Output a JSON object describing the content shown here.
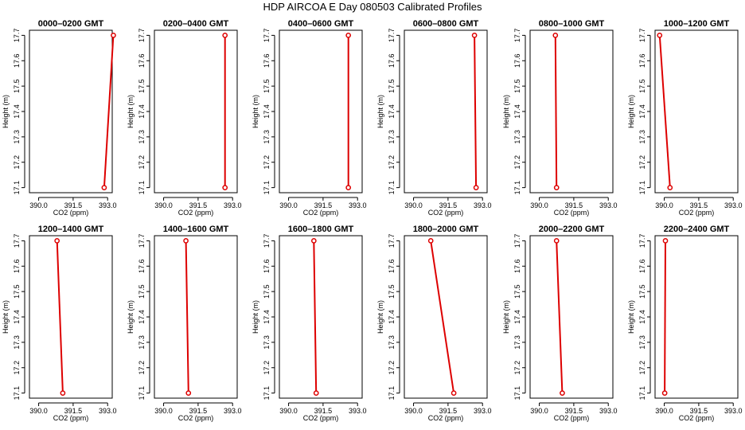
{
  "title": "HDP  AIRCOA E  Day 080503  Calibrated Profiles",
  "colors": {
    "series": "#dd0000",
    "axes": "#000000",
    "background": "#ffffff"
  },
  "chart_data": [
    {
      "type": "line",
      "title": "0000–0200 GMT",
      "xlabel": "CO2 (ppm)",
      "ylabel": "Height (m)",
      "xlim": [
        389.6,
        393.2
      ],
      "ylim": [
        17.08,
        17.72
      ],
      "xticks": [
        390.0,
        391.5,
        393.0
      ],
      "xtick_labels": [
        "390.0",
        "391.5",
        "393.0"
      ],
      "yticks": [
        17.1,
        17.2,
        17.3,
        17.4,
        17.5,
        17.6,
        17.7
      ],
      "ytick_labels": [
        "17.1",
        "17.2",
        "17.3",
        "17.4",
        "17.5",
        "17.6",
        "17.7"
      ],
      "series": [
        {
          "x": [
            392.85,
            393.25
          ],
          "y": [
            17.1,
            17.7
          ]
        }
      ]
    },
    {
      "type": "line",
      "title": "0200–0400 GMT",
      "xlabel": "CO2 (ppm)",
      "ylabel": "Height (m)",
      "xlim": [
        389.6,
        393.2
      ],
      "ylim": [
        17.08,
        17.72
      ],
      "xticks": [
        390.0,
        391.5,
        393.0
      ],
      "xtick_labels": [
        "390.0",
        "391.5",
        "393.0"
      ],
      "yticks": [
        17.1,
        17.2,
        17.3,
        17.4,
        17.5,
        17.6,
        17.7
      ],
      "ytick_labels": [
        "17.1",
        "17.2",
        "17.3",
        "17.4",
        "17.5",
        "17.6",
        "17.7"
      ],
      "series": [
        {
          "x": [
            392.67,
            392.67
          ],
          "y": [
            17.1,
            17.7
          ]
        }
      ]
    },
    {
      "type": "line",
      "title": "0400–0600 GMT",
      "xlabel": "CO2 (ppm)",
      "ylabel": "Height (m)",
      "xlim": [
        389.6,
        393.2
      ],
      "ylim": [
        17.08,
        17.72
      ],
      "xticks": [
        390.0,
        391.5,
        393.0
      ],
      "xtick_labels": [
        "390.0",
        "391.5",
        "393.0"
      ],
      "yticks": [
        17.1,
        17.2,
        17.3,
        17.4,
        17.5,
        17.6,
        17.7
      ],
      "ytick_labels": [
        "17.1",
        "17.2",
        "17.3",
        "17.4",
        "17.5",
        "17.6",
        "17.7"
      ],
      "series": [
        {
          "x": [
            392.6,
            392.6
          ],
          "y": [
            17.1,
            17.7
          ]
        }
      ]
    },
    {
      "type": "line",
      "title": "0600–0800 GMT",
      "xlabel": "CO2 (ppm)",
      "ylabel": "Height (m)",
      "xlim": [
        389.6,
        393.2
      ],
      "ylim": [
        17.08,
        17.72
      ],
      "xticks": [
        390.0,
        391.5,
        393.0
      ],
      "xtick_labels": [
        "390.0",
        "391.5",
        "393.0"
      ],
      "yticks": [
        17.1,
        17.2,
        17.3,
        17.4,
        17.5,
        17.6,
        17.7
      ],
      "ytick_labels": [
        "17.1",
        "17.2",
        "17.3",
        "17.4",
        "17.5",
        "17.6",
        "17.7"
      ],
      "series": [
        {
          "x": [
            392.72,
            392.65
          ],
          "y": [
            17.1,
            17.7
          ]
        }
      ]
    },
    {
      "type": "line",
      "title": "0800–1000 GMT",
      "xlabel": "CO2 (ppm)",
      "ylabel": "Height (m)",
      "xlim": [
        389.6,
        393.2
      ],
      "ylim": [
        17.08,
        17.72
      ],
      "xticks": [
        390.0,
        391.5,
        393.0
      ],
      "xtick_labels": [
        "390.0",
        "391.5",
        "393.0"
      ],
      "yticks": [
        17.1,
        17.2,
        17.3,
        17.4,
        17.5,
        17.6,
        17.7
      ],
      "ytick_labels": [
        "17.1",
        "17.2",
        "17.3",
        "17.4",
        "17.5",
        "17.6",
        "17.7"
      ],
      "series": [
        {
          "x": [
            390.75,
            390.7
          ],
          "y": [
            17.1,
            17.7
          ]
        }
      ]
    },
    {
      "type": "line",
      "title": "1000–1200 GMT",
      "xlabel": "CO2 (ppm)",
      "ylabel": "Height (m)",
      "xlim": [
        389.6,
        393.2
      ],
      "ylim": [
        17.08,
        17.72
      ],
      "xticks": [
        390.0,
        391.5,
        393.0
      ],
      "xtick_labels": [
        "390.0",
        "391.5",
        "393.0"
      ],
      "yticks": [
        17.1,
        17.2,
        17.3,
        17.4,
        17.5,
        17.6,
        17.7
      ],
      "ytick_labels": [
        "17.1",
        "17.2",
        "17.3",
        "17.4",
        "17.5",
        "17.6",
        "17.7"
      ],
      "series": [
        {
          "x": [
            390.25,
            389.8
          ],
          "y": [
            17.1,
            17.7
          ]
        }
      ]
    },
    {
      "type": "line",
      "title": "1200–1400 GMT",
      "xlabel": "CO2 (ppm)",
      "ylabel": "Height (m)",
      "xlim": [
        389.6,
        393.2
      ],
      "ylim": [
        17.08,
        17.72
      ],
      "xticks": [
        390.0,
        391.5,
        393.0
      ],
      "xtick_labels": [
        "390.0",
        "391.5",
        "393.0"
      ],
      "yticks": [
        17.1,
        17.2,
        17.3,
        17.4,
        17.5,
        17.6,
        17.7
      ],
      "ytick_labels": [
        "17.1",
        "17.2",
        "17.3",
        "17.4",
        "17.5",
        "17.6",
        "17.7"
      ],
      "series": [
        {
          "x": [
            391.05,
            390.8
          ],
          "y": [
            17.1,
            17.7
          ]
        }
      ]
    },
    {
      "type": "line",
      "title": "1400–1600 GMT",
      "xlabel": "CO2 (ppm)",
      "ylabel": "Height (m)",
      "xlim": [
        389.6,
        393.2
      ],
      "ylim": [
        17.08,
        17.72
      ],
      "xticks": [
        390.0,
        391.5,
        393.0
      ],
      "xtick_labels": [
        "390.0",
        "391.5",
        "393.0"
      ],
      "yticks": [
        17.1,
        17.2,
        17.3,
        17.4,
        17.5,
        17.6,
        17.7
      ],
      "ytick_labels": [
        "17.1",
        "17.2",
        "17.3",
        "17.4",
        "17.5",
        "17.6",
        "17.7"
      ],
      "series": [
        {
          "x": [
            391.08,
            390.97
          ],
          "y": [
            17.1,
            17.7
          ]
        }
      ]
    },
    {
      "type": "line",
      "title": "1600–1800 GMT",
      "xlabel": "CO2 (ppm)",
      "ylabel": "Height (m)",
      "xlim": [
        389.6,
        393.2
      ],
      "ylim": [
        17.08,
        17.72
      ],
      "xticks": [
        390.0,
        391.5,
        393.0
      ],
      "xtick_labels": [
        "390.0",
        "391.5",
        "393.0"
      ],
      "yticks": [
        17.1,
        17.2,
        17.3,
        17.4,
        17.5,
        17.6,
        17.7
      ],
      "ytick_labels": [
        "17.1",
        "17.2",
        "17.3",
        "17.4",
        "17.5",
        "17.6",
        "17.7"
      ],
      "series": [
        {
          "x": [
            391.2,
            391.1
          ],
          "y": [
            17.1,
            17.7
          ]
        }
      ]
    },
    {
      "type": "line",
      "title": "1800–2000 GMT",
      "xlabel": "CO2 (ppm)",
      "ylabel": "Height (m)",
      "xlim": [
        389.6,
        393.2
      ],
      "ylim": [
        17.08,
        17.72
      ],
      "xticks": [
        390.0,
        391.5,
        393.0
      ],
      "xtick_labels": [
        "390.0",
        "391.5",
        "393.0"
      ],
      "yticks": [
        17.1,
        17.2,
        17.3,
        17.4,
        17.5,
        17.6,
        17.7
      ],
      "ytick_labels": [
        "17.1",
        "17.2",
        "17.3",
        "17.4",
        "17.5",
        "17.6",
        "17.7"
      ],
      "series": [
        {
          "x": [
            391.75,
            390.75
          ],
          "y": [
            17.1,
            17.7
          ]
        }
      ]
    },
    {
      "type": "line",
      "title": "2000–2200 GMT",
      "xlabel": "CO2 (ppm)",
      "ylabel": "Height (m)",
      "xlim": [
        389.6,
        393.2
      ],
      "ylim": [
        17.08,
        17.72
      ],
      "xticks": [
        390.0,
        391.5,
        393.0
      ],
      "xtick_labels": [
        "390.0",
        "391.5",
        "393.0"
      ],
      "yticks": [
        17.1,
        17.2,
        17.3,
        17.4,
        17.5,
        17.6,
        17.7
      ],
      "ytick_labels": [
        "17.1",
        "17.2",
        "17.3",
        "17.4",
        "17.5",
        "17.6",
        "17.7"
      ],
      "series": [
        {
          "x": [
            391.0,
            390.75
          ],
          "y": [
            17.1,
            17.7
          ]
        }
      ]
    },
    {
      "type": "line",
      "title": "2200–2400 GMT",
      "xlabel": "CO2 (ppm)",
      "ylabel": "Height (m)",
      "xlim": [
        389.6,
        393.2
      ],
      "ylim": [
        17.08,
        17.72
      ],
      "xticks": [
        390.0,
        391.5,
        393.0
      ],
      "xtick_labels": [
        "390.0",
        "391.5",
        "393.0"
      ],
      "yticks": [
        17.1,
        17.2,
        17.3,
        17.4,
        17.5,
        17.6,
        17.7
      ],
      "ytick_labels": [
        "17.1",
        "17.2",
        "17.3",
        "17.4",
        "17.5",
        "17.6",
        "17.7"
      ],
      "series": [
        {
          "x": [
            390.02,
            390.05
          ],
          "y": [
            17.1,
            17.7
          ]
        }
      ]
    }
  ]
}
